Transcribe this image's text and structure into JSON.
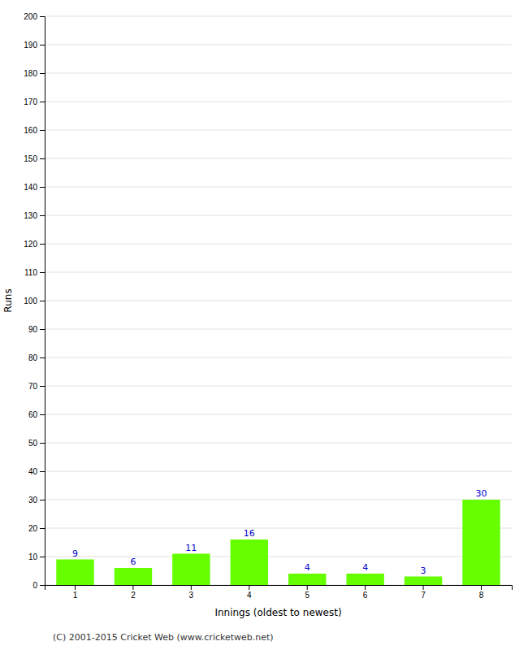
{
  "chart_data": {
    "type": "bar",
    "categories": [
      "1",
      "2",
      "3",
      "4",
      "5",
      "6",
      "7",
      "8"
    ],
    "values": [
      9,
      6,
      11,
      16,
      4,
      4,
      3,
      30
    ],
    "color": "#66ff00",
    "xlabel": "Innings (oldest to newest)",
    "ylabel": "Runs",
    "ylim": [
      0,
      200
    ],
    "yticks": [
      0,
      10,
      20,
      30,
      40,
      50,
      60,
      70,
      80,
      90,
      100,
      110,
      120,
      130,
      140,
      150,
      160,
      170,
      180,
      190,
      200
    ],
    "grid": true,
    "data_labels": true,
    "annotations": [
      "(C) 2001-2015 Cricket Web (www.cricketweb.net)"
    ]
  }
}
